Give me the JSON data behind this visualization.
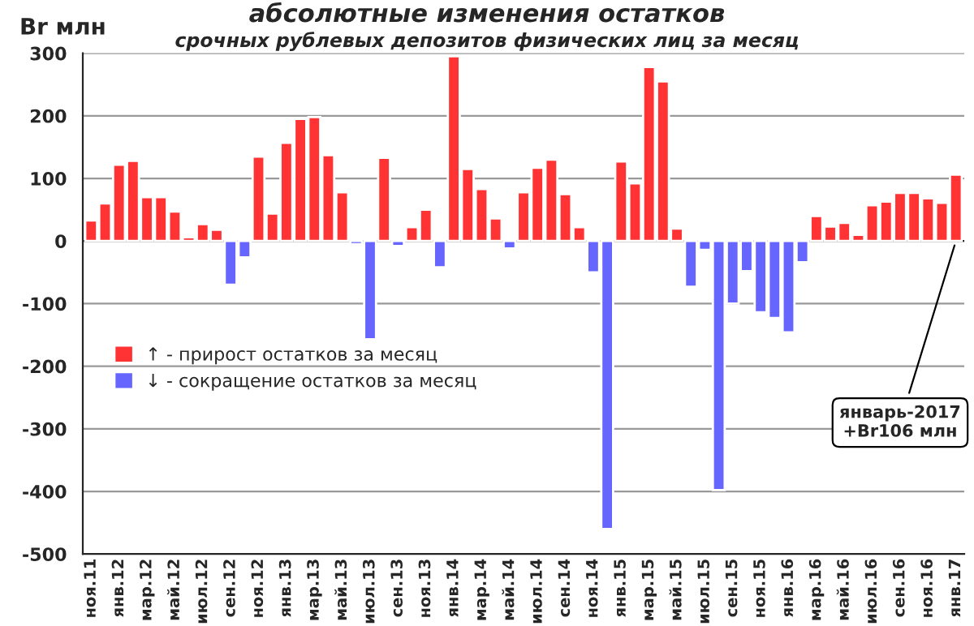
{
  "chart_data": {
    "type": "bar",
    "title": "абсолютные изменения остатков",
    "subtitle": "срочных рублевых депозитов физических лиц за месяц",
    "ylabel": "Br млн",
    "categories": [
      "ноя.11",
      null,
      "янв.12",
      null,
      "мар.12",
      null,
      "май.12",
      null,
      "июл.12",
      null,
      "сен.12",
      null,
      "ноя.12",
      null,
      "янв.13",
      null,
      "мар.13",
      null,
      "май.13",
      null,
      "июл.13",
      null,
      "сен.13",
      null,
      "ноя.13",
      null,
      "янв.14",
      null,
      "мар.14",
      null,
      "май.14",
      null,
      "июл.14",
      null,
      "сен.14",
      null,
      "ноя.14",
      null,
      "янв.15",
      null,
      "мар.15",
      null,
      "май.15",
      null,
      "июл.15",
      null,
      "сен.15",
      null,
      "ноя.15",
      null,
      "янв.16",
      null,
      "мар.16",
      null,
      "май.16",
      null,
      "июл.16",
      null,
      "сен.16",
      null,
      "ноя.16",
      null,
      "янв.17"
    ],
    "series": [
      {
        "name": "↑ - прирост остатков за месяц",
        "color": "#ff3333",
        "values": [
          33,
          60,
          122,
          128,
          70,
          70,
          47,
          6,
          27,
          18,
          null,
          null,
          135,
          44,
          157,
          195,
          198,
          137,
          78,
          null,
          null,
          133,
          null,
          22,
          50,
          null,
          295,
          115,
          83,
          36,
          null,
          78,
          117,
          130,
          75,
          22,
          null,
          null,
          127,
          92,
          278,
          255,
          20,
          null,
          null,
          null,
          null,
          null,
          null,
          null,
          null,
          null,
          40,
          23,
          29,
          10,
          57,
          63,
          77,
          77,
          68,
          61,
          106
        ]
      },
      {
        "name": "↓ - сокращение остатков за месяц",
        "color": "#6666ff",
        "values": [
          null,
          null,
          null,
          null,
          null,
          null,
          null,
          null,
          null,
          null,
          -70,
          -26,
          null,
          null,
          null,
          null,
          null,
          null,
          null,
          -5,
          -157,
          null,
          -8,
          null,
          null,
          -42,
          null,
          null,
          null,
          null,
          -12,
          null,
          null,
          null,
          null,
          null,
          -50,
          -460,
          null,
          null,
          null,
          null,
          null,
          -73,
          -14,
          -398,
          -100,
          -48,
          -114,
          -123,
          -146,
          -34,
          null,
          null,
          null,
          null,
          null,
          null,
          null,
          null,
          null,
          null,
          null
        ]
      }
    ],
    "ylim": [
      -500,
      300
    ],
    "yticks": [
      -500,
      -400,
      -300,
      -200,
      -100,
      0,
      100,
      200,
      300
    ],
    "ref_lines": [
      {
        "axis": "y",
        "value": 0,
        "color": "#000000"
      }
    ],
    "annotations": [
      {
        "text": "январь-2017\n+Br106 млн",
        "x": "янв.17",
        "y": 0
      }
    ],
    "grid": "y",
    "legend": "left"
  }
}
